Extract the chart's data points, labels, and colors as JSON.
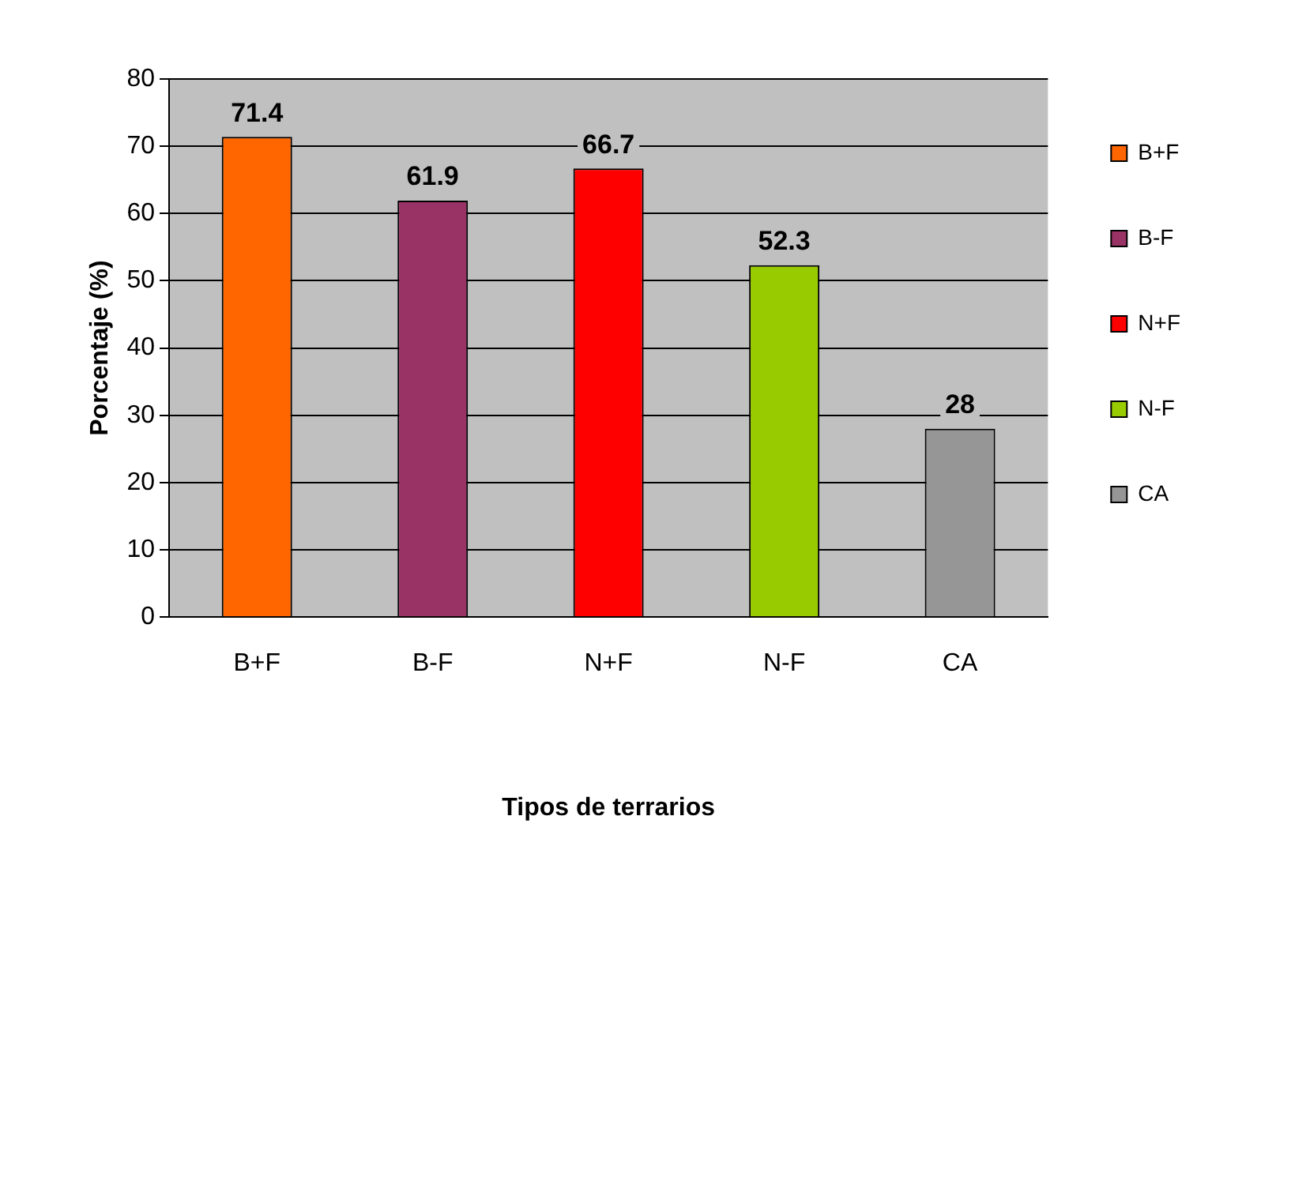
{
  "chart_data": {
    "type": "bar",
    "xlabel": "Tipos de terrarios",
    "ylabel": "Porcentaje (%)",
    "categories": [
      "B+F",
      "B-F",
      "N+F",
      "N-F",
      "CA"
    ],
    "series": [
      {
        "name": "B+F",
        "color": "#ff6600",
        "values": [
          71.4,
          null,
          null,
          null,
          null
        ]
      },
      {
        "name": "B-F",
        "color": "#993366",
        "values": [
          null,
          61.9,
          null,
          null,
          null
        ]
      },
      {
        "name": "N+F",
        "color": "#ff0000",
        "values": [
          null,
          null,
          66.7,
          null,
          null
        ]
      },
      {
        "name": "N-F",
        "color": "#99cc00",
        "values": [
          null,
          null,
          null,
          52.3,
          null
        ]
      },
      {
        "name": "CA",
        "color": "#969696",
        "values": [
          null,
          null,
          null,
          null,
          28
        ]
      }
    ],
    "ylim": [
      0,
      80
    ],
    "yticks": [
      0,
      10,
      20,
      30,
      40,
      50,
      60,
      70,
      80
    ],
    "grid": "y",
    "legend": "right",
    "data_labels": true
  }
}
